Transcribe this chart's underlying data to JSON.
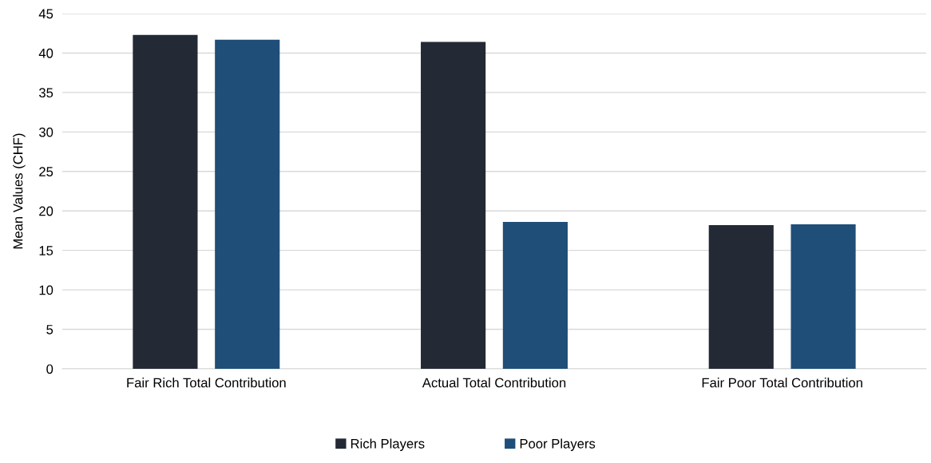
{
  "chart_data": {
    "type": "bar",
    "ylabel": "Mean Values (CHF)",
    "categories": [
      "Fair Rich Total Contribution",
      "Actual Total Contribution",
      "Fair Poor Total Contribution"
    ],
    "series": [
      {
        "name": "Rich Players",
        "color": "#232a35",
        "values": [
          42.3,
          41.4,
          18.2
        ]
      },
      {
        "name": "Poor Players",
        "color": "#1f4e79",
        "values": [
          41.7,
          18.6,
          18.3
        ]
      }
    ],
    "ylim": [
      0,
      45
    ],
    "yticks": [
      0,
      5,
      10,
      15,
      20,
      25,
      30,
      35,
      40,
      45
    ],
    "grid": "y",
    "legend": "bottom"
  }
}
